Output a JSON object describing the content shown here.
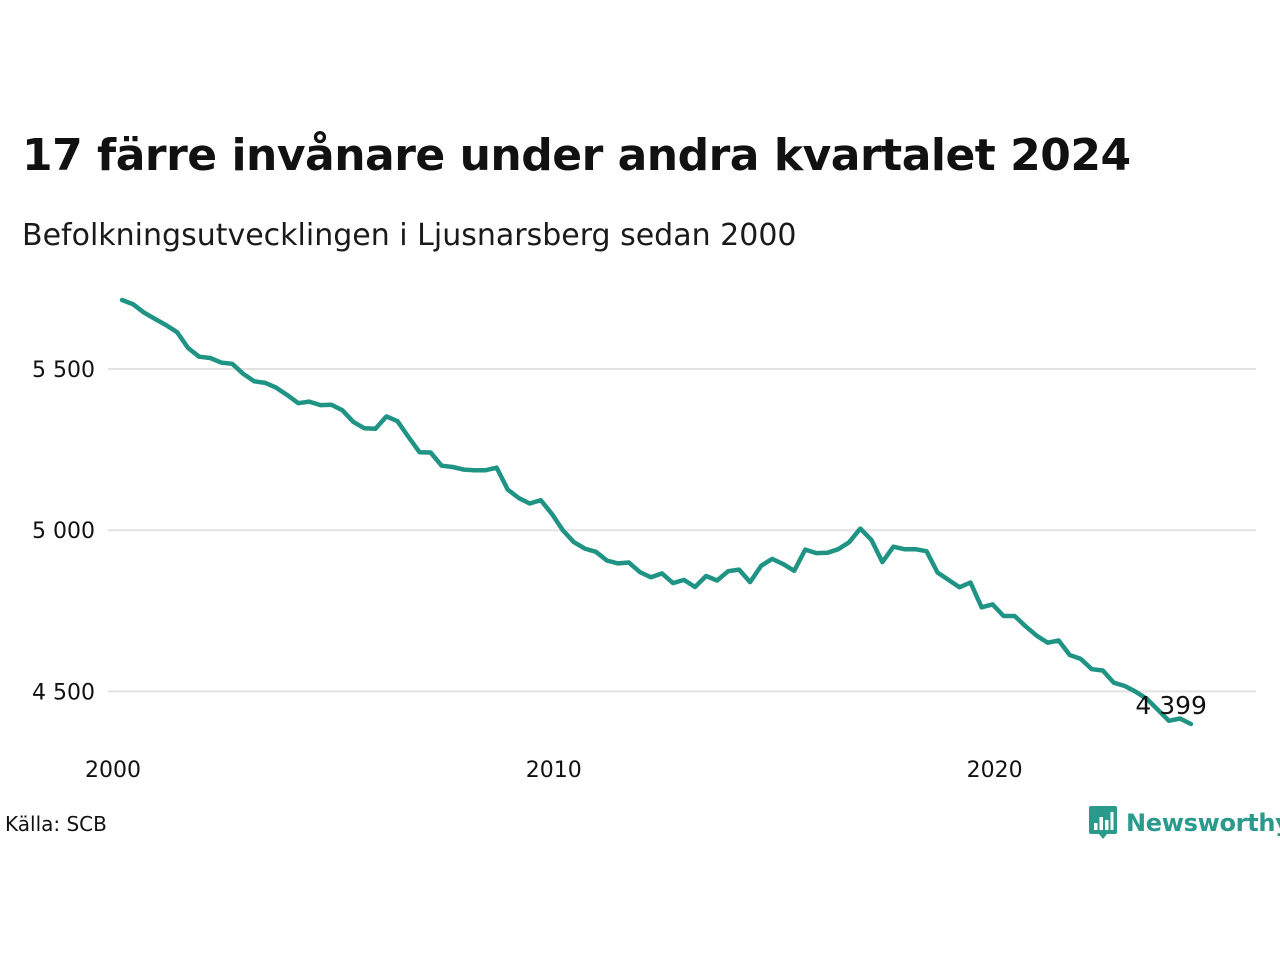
{
  "title": "17 färre invånare under andra kvartalet 2024",
  "subtitle": "Befolkningsutvecklingen i Ljusnarsberg sedan 2000",
  "source": "Källa: SCB",
  "brand": "Newsworthy",
  "colors": {
    "line": "#1f9484",
    "grid": "#e2e2e2",
    "brand": "#2a9a8d"
  },
  "chart_data": {
    "type": "line",
    "title": "17 färre invånare under andra kvartalet 2024",
    "subtitle": "Befolkningsutvecklingen i Ljusnarsberg sedan 2000",
    "xlabel": "",
    "ylabel": "",
    "x_ticks": [
      2000,
      2010,
      2020
    ],
    "x_tick_labels": [
      "2000",
      "2010",
      "2020"
    ],
    "y_ticks": [
      4500,
      5000,
      5500
    ],
    "y_tick_labels": [
      "4 500",
      "5 000",
      "5 500"
    ],
    "xlim": [
      2000,
      2025
    ],
    "ylim": [
      4399,
      5714
    ],
    "grid": "horizontal",
    "end_label": "4 399",
    "series": [
      {
        "x": [
          2000.0,
          2000.25,
          2000.5,
          2000.75,
          2001.0,
          2001.25,
          2001.5,
          2001.75,
          2002.0,
          2002.25,
          2002.5,
          2002.75,
          2003.0,
          2003.25,
          2003.5,
          2003.75,
          2004.0,
          2004.25,
          2004.5,
          2004.75,
          2005.0,
          2005.25,
          2005.5,
          2005.75,
          2006.0,
          2006.25,
          2006.5,
          2006.75,
          2007.0,
          2007.25,
          2007.5,
          2007.75,
          2008.0,
          2008.25,
          2008.5,
          2008.75,
          2009.0,
          2009.25,
          2009.5,
          2009.75,
          2010.0,
          2010.25,
          2010.5,
          2010.75,
          2011.0,
          2011.25,
          2011.5,
          2011.75,
          2012.0,
          2012.25,
          2012.5,
          2012.75,
          2013.0,
          2013.25,
          2013.5,
          2013.75,
          2014.0,
          2014.25,
          2014.5,
          2014.75,
          2015.0,
          2015.25,
          2015.5,
          2015.75,
          2016.0,
          2016.25,
          2016.5,
          2016.75,
          2017.0,
          2017.25,
          2017.5,
          2017.75,
          2018.0,
          2018.25,
          2018.5,
          2018.75,
          2019.0,
          2019.25,
          2019.5,
          2019.75,
          2020.0,
          2020.25,
          2020.5,
          2020.75,
          2021.0,
          2021.25,
          2021.5,
          2021.75,
          2022.0,
          2022.25,
          2022.5,
          2022.75,
          2023.0,
          2023.25,
          2023.5,
          2023.75,
          2024.0,
          2024.25
        ],
        "values": [
          5714,
          5701,
          5675,
          5655,
          5636,
          5614,
          5565,
          5538,
          5534,
          5520,
          5516,
          5485,
          5462,
          5457,
          5442,
          5419,
          5394,
          5399,
          5388,
          5389,
          5372,
          5336,
          5316,
          5315,
          5353,
          5338,
          5289,
          5242,
          5241,
          5200,
          5196,
          5188,
          5186,
          5186,
          5194,
          5126,
          5100,
          5083,
          5093,
          5051,
          5000,
          4963,
          4943,
          4933,
          4906,
          4897,
          4900,
          4870,
          4854,
          4866,
          4836,
          4846,
          4824,
          4858,
          4844,
          4873,
          4878,
          4839,
          4890,
          4911,
          4895,
          4874,
          4940,
          4929,
          4930,
          4941,
          4963,
          5005,
          4970,
          4901,
          4949,
          4941,
          4941,
          4935,
          4869,
          4846,
          4823,
          4838,
          4761,
          4770,
          4734,
          4734,
          4702,
          4673,
          4651,
          4658,
          4613,
          4601,
          4569,
          4565,
          4527,
          4517,
          4499,
          4477,
          4443,
          4409,
          4416,
          4399
        ]
      }
    ]
  }
}
